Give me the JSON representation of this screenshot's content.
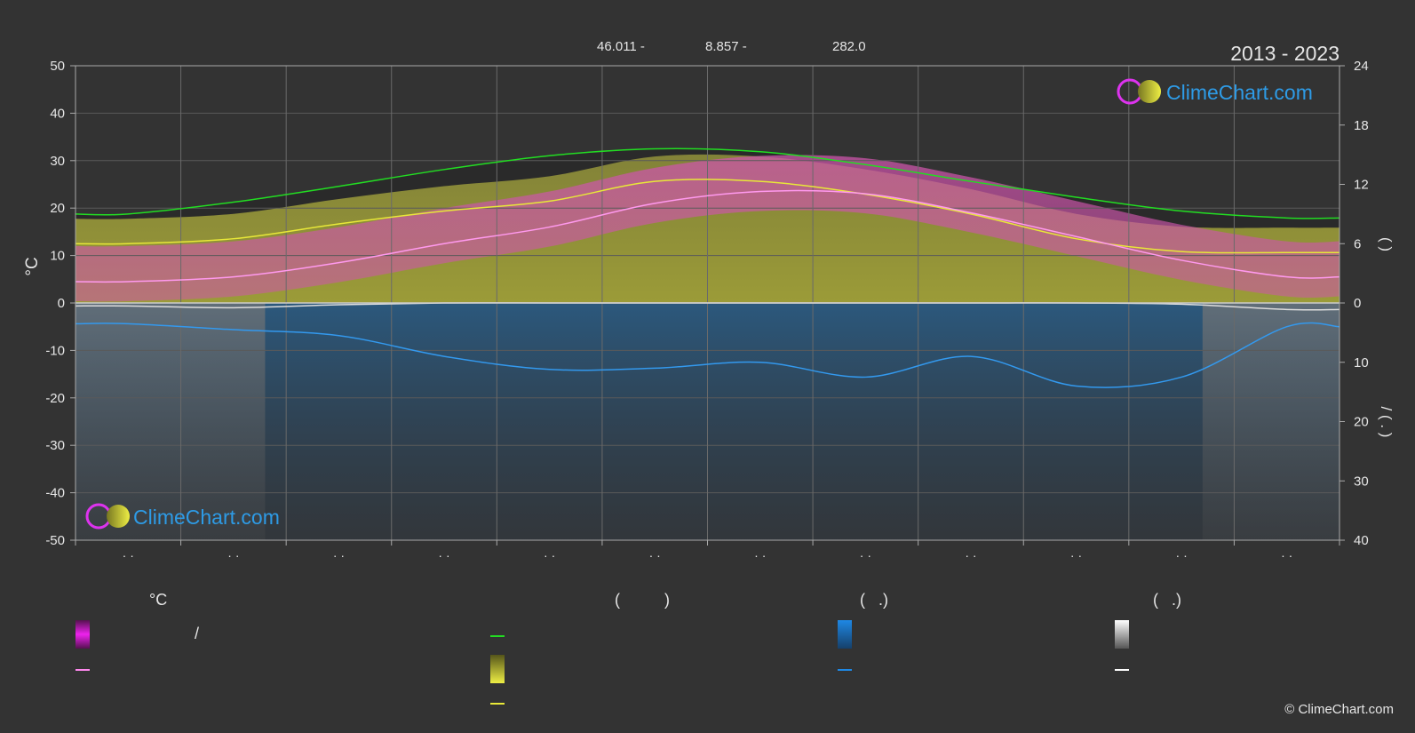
{
  "header": {
    "coords": [
      "46.011 -",
      "8.857 -",
      "282.0"
    ],
    "years": "2013 - 2023",
    "logo_text": "ClimeChart.com",
    "logo_text_bottom": "ClimeChart.com"
  },
  "axes": {
    "left_unit": "°C",
    "right_top_label": "(   )",
    "right_bottom_label": "/   (  .  )"
  },
  "chart_data": {
    "type": "line",
    "months": [
      "· ·",
      "· ·",
      "· ·",
      "· ·",
      "· ·",
      "· ·",
      "· ·",
      "· ·",
      "· ·",
      "· ·",
      "· ·",
      "· ·"
    ],
    "ylim_left": [
      -50,
      50
    ],
    "yticks_left": [
      50,
      40,
      30,
      20,
      10,
      0,
      -10,
      -20,
      -30,
      -40,
      -50
    ],
    "ylim_right_top": [
      0,
      24
    ],
    "yticks_right_top": [
      24,
      18,
      12,
      6,
      0
    ],
    "ylim_right_bottom": [
      0,
      40
    ],
    "yticks_right_bottom": [
      10,
      20,
      30,
      40
    ],
    "series": [
      {
        "key": "daylight",
        "color": "#22dd22",
        "unit": "hours",
        "values": [
          9.0,
          10.2,
          11.8,
          13.5,
          14.9,
          15.6,
          15.3,
          14.0,
          12.3,
          10.7,
          9.3,
          8.6
        ]
      },
      {
        "key": "sunshine",
        "color": "#e8e838",
        "unit": "hours",
        "values": [
          6.0,
          6.5,
          8.0,
          9.3,
          10.3,
          12.3,
          12.3,
          11.0,
          9.0,
          6.5,
          5.2,
          5.1
        ]
      },
      {
        "key": "max_temp",
        "color": "#ff99ee",
        "unit": "°C",
        "values": [
          4.5,
          5.5,
          8.5,
          12.5,
          16.0,
          21.0,
          23.5,
          23.0,
          19.0,
          14.0,
          9.0,
          5.5
        ]
      },
      {
        "key": "precip_avg",
        "color": "#3399ee",
        "unit": "mm",
        "values": [
          3.5,
          4.5,
          5.5,
          9.0,
          11.2,
          11.0,
          10.0,
          12.5,
          9.0,
          14.0,
          12.5,
          4.0
        ]
      },
      {
        "key": "snow_avg",
        "color": "#dddddd",
        "unit": "mm",
        "values": [
          0.5,
          0.8,
          0.3,
          0.0,
          0.0,
          0.0,
          0.0,
          0.0,
          0.0,
          0.0,
          0.2,
          1.1
        ]
      }
    ]
  },
  "legend": {
    "temp_header": "°C",
    "sun_header": "(          )",
    "rain_header": "(   .)",
    "snow_header": "(   .)",
    "temp_range_label": "/",
    "colors": {
      "magenta": "#ee22ee",
      "green": "#22dd22",
      "yellow": "#e8e838",
      "blue": "#1e88e5",
      "white": "#ffffff",
      "pink": "#ff88ee"
    }
  },
  "footer": {
    "copyright": "© ClimeChart.com"
  }
}
